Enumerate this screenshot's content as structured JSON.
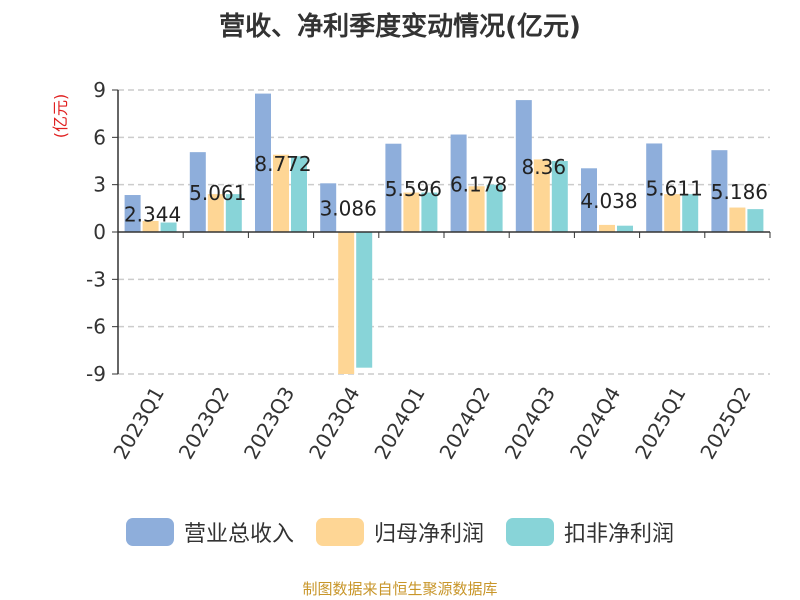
{
  "chart_data": {
    "type": "bar",
    "title": "营收、净利季度变动情况(亿元)",
    "ylabel": "(亿元)",
    "ylim": [
      -9,
      9
    ],
    "yticks": [
      9,
      6,
      3,
      0,
      -3,
      -6,
      -9
    ],
    "grid": true,
    "legend_position": "bottom",
    "categories": [
      "2023Q1",
      "2023Q2",
      "2023Q3",
      "2023Q4",
      "2024Q1",
      "2024Q2",
      "2024Q3",
      "2024Q4",
      "2025Q1",
      "2025Q2"
    ],
    "series": [
      {
        "name": "营业总收入",
        "color": "#8eaedb",
        "values": [
          2.344,
          5.061,
          8.772,
          3.086,
          5.596,
          6.178,
          8.36,
          4.038,
          5.611,
          5.186
        ],
        "labels": [
          "2.344",
          "5.061",
          "8.772",
          "3.086",
          "5.596",
          "6.178",
          "8.36",
          "4.038",
          "5.611",
          "5.186"
        ]
      },
      {
        "name": "归母净利润",
        "color": "#fed695",
        "values": [
          0.7,
          2.4,
          4.9,
          -9.0,
          2.5,
          2.9,
          4.6,
          0.45,
          2.4,
          1.55
        ]
      },
      {
        "name": "扣非净利润",
        "color": "#88d4d8",
        "values": [
          0.6,
          2.4,
          4.8,
          -8.6,
          2.5,
          3.0,
          4.5,
          0.4,
          2.4,
          1.45
        ]
      }
    ]
  },
  "source_note": "制图数据来自恒生聚源数据库"
}
